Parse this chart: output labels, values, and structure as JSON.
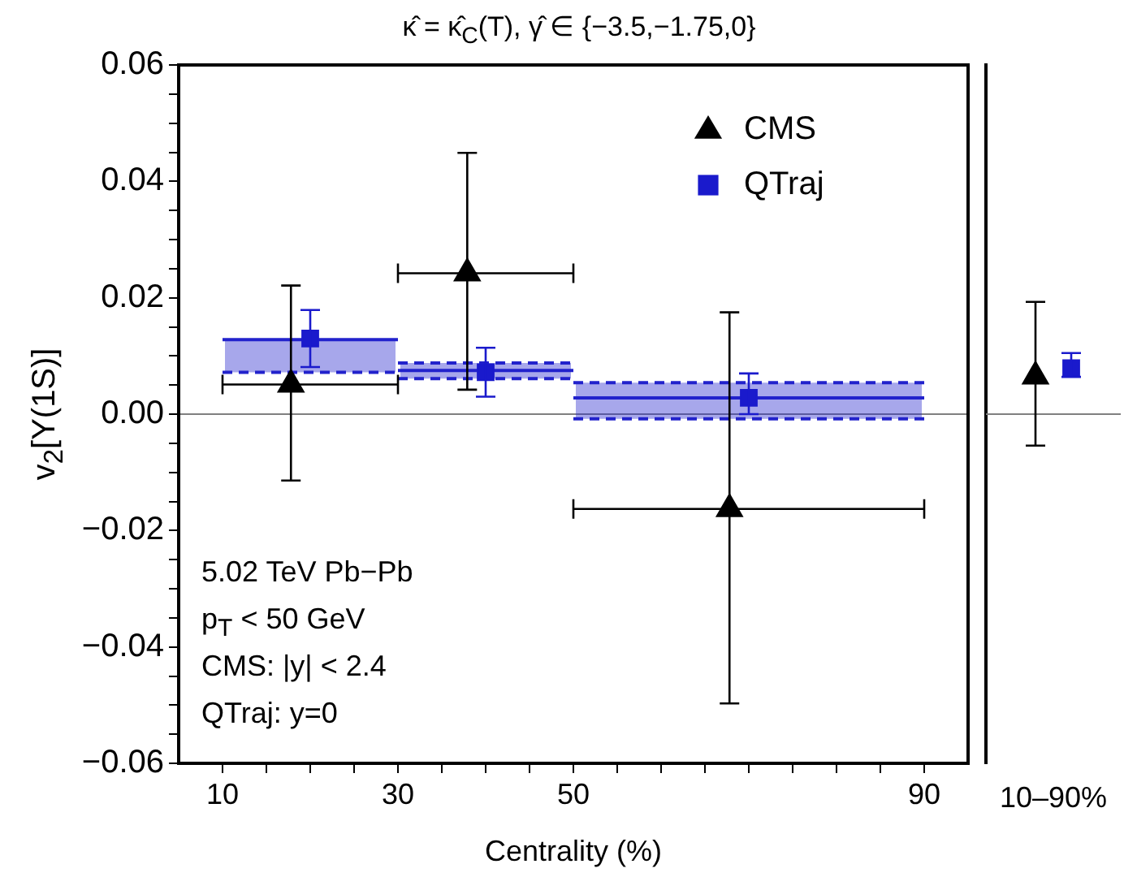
{
  "chart_data": [
    {
      "type": "scatter",
      "title": "κ̂ = κ̂$_{C}$(T), γ̂ ∈ {−3.5,−1.75,0}",
      "xlabel": "Centrality (%)",
      "ylabel": "v$_{2}$[Υ(1S)]",
      "xlim": [
        5,
        95
      ],
      "xticks": [
        10,
        {
          "value": 15,
          "label": null
        },
        {
          "value": 20,
          "label": null
        },
        {
          "value": 25,
          "label": null
        },
        30,
        {
          "value": 35,
          "label": null
        },
        {
          "value": 40,
          "label": null
        },
        {
          "value": 45,
          "label": null
        },
        50,
        {
          "value": 55,
          "label": null
        },
        {
          "value": 60,
          "label": null
        },
        {
          "value": 65,
          "label": null
        },
        {
          "value": 70,
          "label": null
        },
        {
          "value": 75,
          "label": null
        },
        {
          "value": 80,
          "label": null
        },
        {
          "value": 85,
          "label": null
        },
        90
      ],
      "ylim": [
        -0.06,
        0.06
      ],
      "yticks": [
        {
          "value": -0.06,
          "label": "−0.06"
        },
        {
          "value": -0.055,
          "label": null
        },
        {
          "value": -0.05,
          "label": null
        },
        {
          "value": -0.045,
          "label": null
        },
        {
          "value": -0.04,
          "label": "−0.04"
        },
        {
          "value": -0.035,
          "label": null
        },
        {
          "value": -0.03,
          "label": null
        },
        {
          "value": -0.025,
          "label": null
        },
        {
          "value": -0.02,
          "label": "−0.02"
        },
        {
          "value": -0.015,
          "label": null
        },
        {
          "value": -0.01,
          "label": null
        },
        {
          "value": -0.005,
          "label": null
        },
        {
          "value": 0,
          "label": "0.00"
        },
        {
          "value": 0.005,
          "label": null
        },
        {
          "value": 0.01,
          "label": null
        },
        {
          "value": 0.015,
          "label": null
        },
        0.02,
        {
          "value": 0.025,
          "label": null
        },
        {
          "value": 0.03,
          "label": null
        },
        {
          "value": 0.035,
          "label": null
        },
        0.04,
        {
          "value": 0.045,
          "label": null
        },
        {
          "value": 0.05,
          "label": null
        },
        {
          "value": 0.055,
          "label": null
        },
        0.06
      ],
      "series": [
        {
          "name": "CMS",
          "marker": "triangle",
          "color": "#000000",
          "x": [
            17.8,
            37.9,
            67.8
          ],
          "values": [
            0.0051,
            0.0242,
            -0.0163
          ],
          "errors": [
            [
              -0.0114,
              0.0221
            ],
            [
              0.0042,
              0.0449
            ],
            [
              -0.0497,
              0.0175
            ]
          ],
          "xerrors": [
            [
              10,
              30
            ],
            [
              30,
              50
            ],
            [
              50,
              90
            ]
          ]
        },
        {
          "name": "QTraj",
          "marker": "square",
          "color": "#1a1acc",
          "x": [
            20,
            40,
            70
          ],
          "values": [
            0.013,
            0.0072,
            0.0028
          ],
          "errors": [
            [
              0.0081,
              0.0179
            ],
            [
              0.003,
              0.0114
            ],
            [
              0.0,
              0.007
            ]
          ]
        },
        {
          "type": "line",
          "color": "#2222cc",
          "x": [
            10,
            30
          ],
          "values": [
            0.0128,
            0.0128
          ],
          "lower": [
            0.0072,
            0.0072
          ],
          "upper": [
            0.0128,
            0.0128
          ]
        },
        {
          "type": "line",
          "color": "#2222cc",
          "x": [
            30,
            50
          ],
          "values": [
            0.0075,
            0.0075
          ],
          "lower": [
            0.0061,
            0.0061
          ],
          "upper": [
            0.0088,
            0.0088
          ]
        },
        {
          "type": "line",
          "color": "#2222cc",
          "x": [
            50,
            90
          ],
          "values": [
            0.0028,
            0.0028
          ],
          "lower": [
            -0.0008,
            -0.0008
          ],
          "upper": [
            0.0054,
            0.0054
          ]
        },
        {
          "type": "line",
          "line_style": "dashed",
          "color": "#2222cc",
          "x": [
            10,
            30
          ],
          "values": [
            0.0072,
            0.0072
          ]
        },
        {
          "type": "line",
          "line_style": "dashed",
          "color": "#2222cc",
          "x": [
            30,
            50
          ],
          "values": [
            0.0061,
            0.0061
          ]
        },
        {
          "type": "line",
          "line_style": "dashed",
          "color": "#2222cc",
          "x": [
            30,
            50
          ],
          "values": [
            0.0088,
            0.0088
          ]
        },
        {
          "type": "line",
          "line_style": "dashed",
          "color": "#2222cc",
          "x": [
            50,
            90
          ],
          "values": [
            -0.0008,
            -0.0008
          ]
        },
        {
          "type": "line",
          "line_style": "dashed",
          "color": "#2222cc",
          "x": [
            50,
            90
          ],
          "values": [
            0.0054,
            0.0054
          ]
        }
      ],
      "ref_lines": [
        {
          "axis": "y",
          "value": 0,
          "color": "#808080"
        }
      ],
      "legend": "top right",
      "annotations": [
        "5.02 TeV Pb−Pb",
        "p$_{T}$ < 50 GeV",
        "CMS: |y| < 2.4",
        "QTraj: y=0"
      ]
    },
    {
      "type": "scatter",
      "categories": [
        "10–90%"
      ],
      "ylim": [
        -0.06,
        0.06
      ],
      "tick_labels": "x",
      "series": [
        {
          "marker": "triangle",
          "color": "#000000",
          "values": [
            0.0065
          ],
          "errors": [
            [
              -0.0054,
              0.0193
            ]
          ]
        },
        {
          "marker": "square",
          "color": "#1a1acc",
          "values": [
            0.0079
          ],
          "errors": [
            [
              0.0064,
              0.0105
            ]
          ]
        }
      ],
      "ref_lines": [
        {
          "axis": "y",
          "value": 0,
          "color": "#808080"
        }
      ]
    }
  ]
}
